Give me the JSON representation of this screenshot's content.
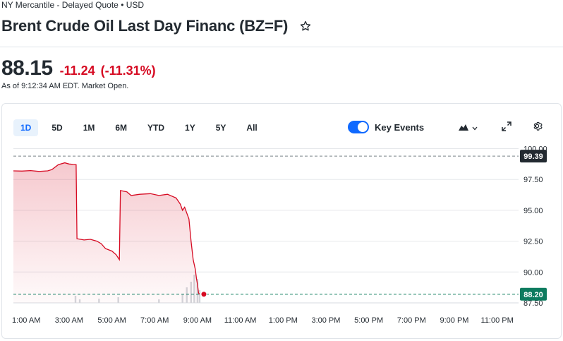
{
  "header": {
    "exchange_line": "NY Mercantile - Delayed Quote • USD",
    "title": "Brent Crude Oil Last Day Financ (BZ=F)"
  },
  "quote": {
    "price": "88.15",
    "change": "-11.24",
    "change_pct": "(-11.31%)",
    "as_of": "As of 9:12:34 AM EDT. Market Open."
  },
  "chart_toolbar": {
    "ranges": [
      "1D",
      "5D",
      "1M",
      "6M",
      "YTD",
      "1Y",
      "5Y",
      "All"
    ],
    "active_range": "1D",
    "key_events_label": "Key Events",
    "key_events_on": true
  },
  "colors": {
    "accent": "#0f69ff",
    "negative": "#d60a22",
    "prev_close_pill": "#232a31",
    "current_pill": "#0d7b5f"
  },
  "chart_data": {
    "type": "area",
    "x_tick_labels": [
      "1:00 AM",
      "3:00 AM",
      "5:00 AM",
      "7:00 AM",
      "9:00 AM",
      "11:00 AM",
      "1:00 PM",
      "3:00 PM",
      "5:00 PM",
      "7:00 PM",
      "9:00 PM",
      "11:00 PM"
    ],
    "y_tick_labels": [
      "100.00",
      "97.50",
      "95.00",
      "92.50",
      "90.00",
      "87.50"
    ],
    "y_ticks": [
      100.0,
      97.5,
      95.0,
      92.5,
      90.0,
      87.5
    ],
    "ylim": [
      87.5,
      100.2
    ],
    "x_unit": "hours since 12:00 AM",
    "x_range": [
      0.4,
      24.0
    ],
    "previous_close": {
      "label": "99.39",
      "value": 99.39
    },
    "current": {
      "label": "88.20",
      "value": 88.2
    },
    "series": [
      {
        "points": [
          [
            0.4,
            98.2
          ],
          [
            0.8,
            98.18
          ],
          [
            1.2,
            98.22
          ],
          [
            1.6,
            98.15
          ],
          [
            2.0,
            98.2
          ],
          [
            2.2,
            98.3
          ],
          [
            2.5,
            98.7
          ],
          [
            2.8,
            98.85
          ],
          [
            3.0,
            98.75
          ],
          [
            3.2,
            98.72
          ],
          [
            3.33,
            98.7
          ],
          [
            3.37,
            92.7
          ],
          [
            3.7,
            92.6
          ],
          [
            4.0,
            92.65
          ],
          [
            4.3,
            92.5
          ],
          [
            4.5,
            92.3
          ],
          [
            4.7,
            91.9
          ],
          [
            5.0,
            91.7
          ],
          [
            5.2,
            91.4
          ],
          [
            5.35,
            91.0
          ],
          [
            5.4,
            96.6
          ],
          [
            5.7,
            96.5
          ],
          [
            5.9,
            96.2
          ],
          [
            6.3,
            96.3
          ],
          [
            6.8,
            96.35
          ],
          [
            7.2,
            96.2
          ],
          [
            7.6,
            96.3
          ],
          [
            8.0,
            96.0
          ],
          [
            8.2,
            95.5
          ],
          [
            8.3,
            95.0
          ],
          [
            8.4,
            95.25
          ],
          [
            8.6,
            94.3
          ],
          [
            8.7,
            92.5
          ],
          [
            8.8,
            91.0
          ],
          [
            8.9,
            90.2
          ],
          [
            8.95,
            89.5
          ],
          [
            9.0,
            89.0
          ],
          [
            9.05,
            88.3
          ],
          [
            9.1,
            88.2
          ]
        ]
      }
    ],
    "volume_note": "volume bars near 9:00 AM"
  }
}
